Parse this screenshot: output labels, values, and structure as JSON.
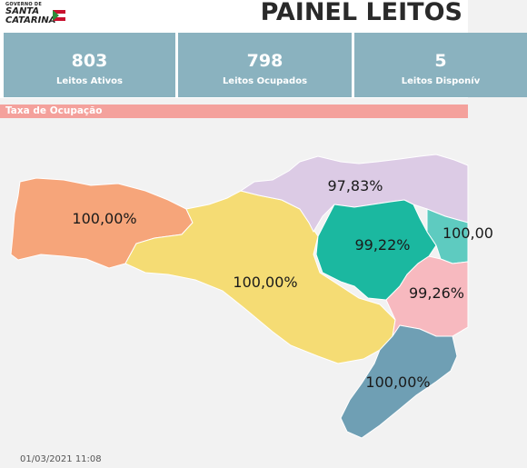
{
  "header": {
    "logo_small": "GOVERNO DE",
    "logo_line1": "SANTA",
    "logo_line2": "CATARINA",
    "title": "PAINEL LEITOS"
  },
  "kpis": [
    {
      "value": "803",
      "label": "Leitos Ativos"
    },
    {
      "value": "798",
      "label": "Leitos Ocupados"
    },
    {
      "value": "5",
      "label": "Leitos Disponív"
    }
  ],
  "section_title": "Taxa de Ocupação",
  "map": {
    "regions": [
      {
        "name": "oeste",
        "rate": "100,00%",
        "color": "#f6a57a"
      },
      {
        "name": "meio-oeste-serra",
        "rate": "100,00%",
        "color": "#f5dc74"
      },
      {
        "name": "norte",
        "rate": "97,83%",
        "color": "#dccbe5"
      },
      {
        "name": "vale-itajai",
        "rate": "99,22%",
        "color": "#1bb8a0"
      },
      {
        "name": "foz-itajai",
        "rate": "100,00",
        "color": "#5ecbc0"
      },
      {
        "name": "grande-florianopolis",
        "rate": "99,26%",
        "color": "#f7b9bf"
      },
      {
        "name": "sul",
        "rate": "100,00%",
        "color": "#6f9fb4"
      }
    ]
  },
  "timestamp": "01/03/2021 11:08"
}
